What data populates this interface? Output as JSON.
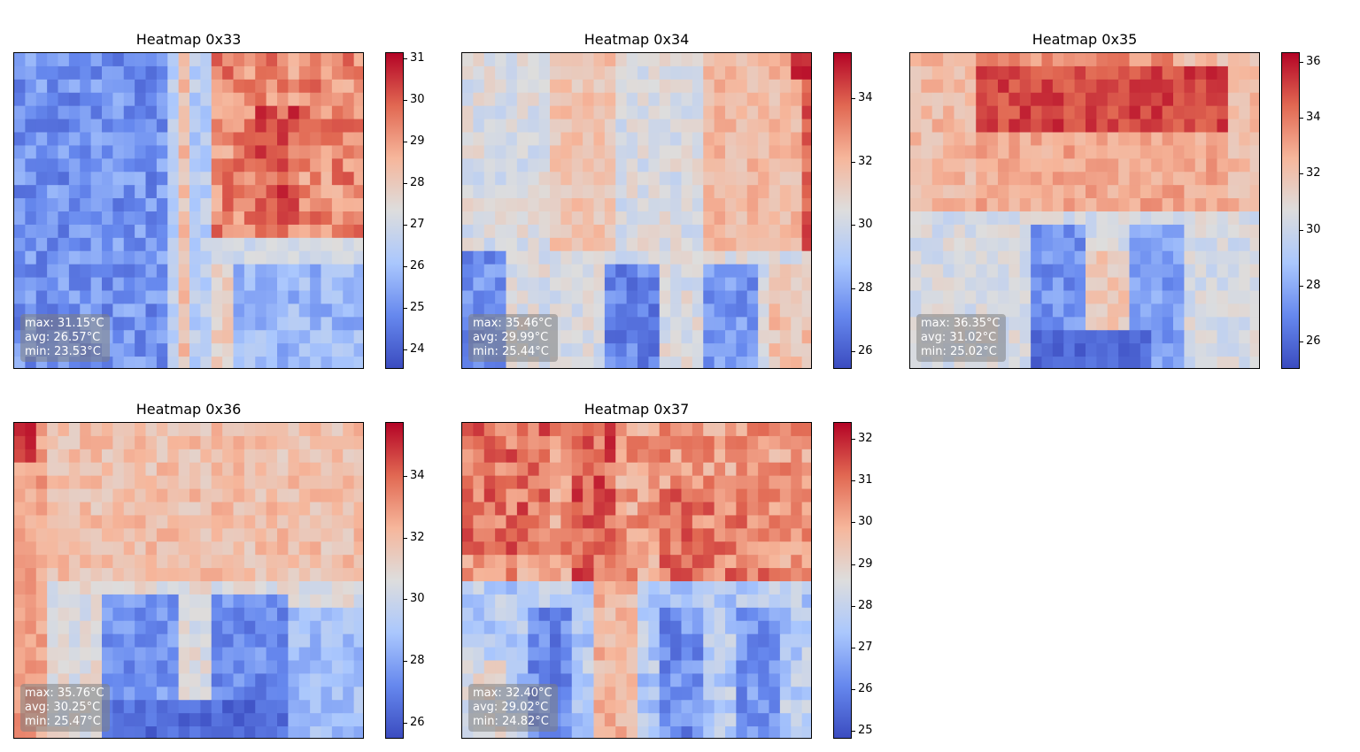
{
  "colormap": {
    "name": "coolwarm",
    "stops": [
      "#3b4cc0",
      "#6688ee",
      "#aac7fd",
      "#dddddd",
      "#f6b69b",
      "#e16852",
      "#b40426"
    ]
  },
  "chart_data": [
    {
      "type": "heatmap",
      "title": "Heatmap 0x33",
      "grid": [
        24,
        32
      ],
      "stats": {
        "max": "max: 31.15°C",
        "avg": "avg: 26.57°C",
        "min": "min: 23.53°C"
      },
      "vmin": 23.53,
      "vmax": 31.15,
      "colorbar_ticks": [
        24,
        25,
        26,
        27,
        28,
        29,
        30,
        31
      ],
      "regions": [
        {
          "rows": [
            0,
            24
          ],
          "cols": [
            0,
            14
          ],
          "value": 25.0,
          "jitter": 0.8
        },
        {
          "rows": [
            0,
            24
          ],
          "cols": [
            14,
            15
          ],
          "value": 26.5,
          "jitter": 0.5
        },
        {
          "rows": [
            0,
            24
          ],
          "cols": [
            15,
            16
          ],
          "value": 28.3,
          "jitter": 0.6
        },
        {
          "rows": [
            0,
            24
          ],
          "cols": [
            16,
            18
          ],
          "value": 26.4,
          "jitter": 0.6
        },
        {
          "rows": [
            0,
            14
          ],
          "cols": [
            18,
            32
          ],
          "value": 29.3,
          "jitter": 0.9
        },
        {
          "rows": [
            4,
            13
          ],
          "cols": [
            22,
            26
          ],
          "value": 30.0,
          "jitter": 0.9
        },
        {
          "rows": [
            14,
            16
          ],
          "cols": [
            18,
            32
          ],
          "value": 27.0,
          "jitter": 0.4
        },
        {
          "rows": [
            16,
            24
          ],
          "cols": [
            18,
            20
          ],
          "value": 27.8,
          "jitter": 0.6
        },
        {
          "rows": [
            16,
            24
          ],
          "cols": [
            20,
            32
          ],
          "value": 25.8,
          "jitter": 0.7
        }
      ]
    },
    {
      "type": "heatmap",
      "title": "Heatmap 0x34",
      "grid": [
        24,
        32
      ],
      "stats": {
        "max": "max: 35.46°C",
        "avg": "avg: 29.99°C",
        "min": "min: 25.44°C"
      },
      "vmin": 25.44,
      "vmax": 35.46,
      "colorbar_ticks": [
        26,
        28,
        30,
        32,
        34
      ],
      "regions": [
        {
          "rows": [
            0,
            24
          ],
          "cols": [
            0,
            32
          ],
          "value": 30.3,
          "jitter": 0.8
        },
        {
          "rows": [
            0,
            15
          ],
          "cols": [
            8,
            14
          ],
          "value": 31.6,
          "jitter": 0.7
        },
        {
          "rows": [
            0,
            15
          ],
          "cols": [
            22,
            31
          ],
          "value": 31.9,
          "jitter": 0.7
        },
        {
          "rows": [
            0,
            15
          ],
          "cols": [
            31,
            32
          ],
          "value": 33.8,
          "jitter": 0.9
        },
        {
          "rows": [
            0,
            2
          ],
          "cols": [
            30,
            32
          ],
          "value": 35.0,
          "jitter": 0.4
        },
        {
          "rows": [
            15,
            24
          ],
          "cols": [
            0,
            4
          ],
          "value": 27.3,
          "jitter": 0.9
        },
        {
          "rows": [
            16,
            24
          ],
          "cols": [
            13,
            18
          ],
          "value": 27.0,
          "jitter": 0.9
        },
        {
          "rows": [
            16,
            24
          ],
          "cols": [
            22,
            27
          ],
          "value": 27.5,
          "jitter": 0.9
        },
        {
          "rows": [
            16,
            24
          ],
          "cols": [
            28,
            32
          ],
          "value": 31.6,
          "jitter": 0.8
        }
      ]
    },
    {
      "type": "heatmap",
      "title": "Heatmap 0x35",
      "grid": [
        24,
        32
      ],
      "stats": {
        "max": "max: 36.35°C",
        "avg": "avg: 31.02°C",
        "min": "min: 25.02°C"
      },
      "vmin": 25.02,
      "vmax": 36.35,
      "colorbar_ticks": [
        26,
        28,
        30,
        32,
        34,
        36
      ],
      "regions": [
        {
          "rows": [
            0,
            12
          ],
          "cols": [
            0,
            32
          ],
          "value": 32.3,
          "jitter": 0.8
        },
        {
          "rows": [
            1,
            6
          ],
          "cols": [
            6,
            29
          ],
          "value": 35.1,
          "jitter": 0.8
        },
        {
          "rows": [
            0,
            1
          ],
          "cols": [
            6,
            24
          ],
          "value": 33.5,
          "jitter": 0.8
        },
        {
          "rows": [
            6,
            12
          ],
          "cols": [
            6,
            29
          ],
          "value": 32.9,
          "jitter": 0.8
        },
        {
          "rows": [
            12,
            24
          ],
          "cols": [
            0,
            32
          ],
          "value": 30.4,
          "jitter": 0.8
        },
        {
          "rows": [
            13,
            24
          ],
          "cols": [
            11,
            16
          ],
          "value": 27.2,
          "jitter": 0.9
        },
        {
          "rows": [
            13,
            24
          ],
          "cols": [
            20,
            25
          ],
          "value": 27.6,
          "jitter": 0.9
        },
        {
          "rows": [
            15,
            22
          ],
          "cols": [
            16,
            20
          ],
          "value": 31.8,
          "jitter": 0.7
        },
        {
          "rows": [
            21,
            24
          ],
          "cols": [
            11,
            22
          ],
          "value": 25.9,
          "jitter": 0.6
        }
      ]
    },
    {
      "type": "heatmap",
      "title": "Heatmap 0x36",
      "grid": [
        24,
        32
      ],
      "stats": {
        "max": "max: 35.76°C",
        "avg": "avg: 30.25°C",
        "min": "min: 25.47°C"
      },
      "vmin": 25.47,
      "vmax": 35.76,
      "colorbar_ticks": [
        26,
        28,
        30,
        32,
        34
      ],
      "regions": [
        {
          "rows": [
            0,
            24
          ],
          "cols": [
            0,
            32
          ],
          "value": 30.6,
          "jitter": 0.8
        },
        {
          "rows": [
            0,
            12
          ],
          "cols": [
            0,
            32
          ],
          "value": 31.9,
          "jitter": 0.8
        },
        {
          "rows": [
            0,
            24
          ],
          "cols": [
            0,
            3
          ],
          "value": 32.8,
          "jitter": 0.8
        },
        {
          "rows": [
            0,
            3
          ],
          "cols": [
            0,
            2
          ],
          "value": 35.0,
          "jitter": 0.5
        },
        {
          "rows": [
            13,
            24
          ],
          "cols": [
            8,
            15
          ],
          "value": 27.5,
          "jitter": 0.9
        },
        {
          "rows": [
            13,
            24
          ],
          "cols": [
            18,
            25
          ],
          "value": 27.3,
          "jitter": 0.9
        },
        {
          "rows": [
            21,
            24
          ],
          "cols": [
            8,
            25
          ],
          "value": 26.4,
          "jitter": 0.7
        },
        {
          "rows": [
            14,
            24
          ],
          "cols": [
            25,
            32
          ],
          "value": 28.7,
          "jitter": 0.8
        }
      ]
    },
    {
      "type": "heatmap",
      "title": "Heatmap 0x37",
      "grid": [
        24,
        32
      ],
      "stats": {
        "max": "max: 32.40°C",
        "avg": "avg: 29.02°C",
        "min": "min: 24.82°C"
      },
      "vmin": 24.82,
      "vmax": 32.4,
      "colorbar_ticks": [
        25,
        26,
        27,
        28,
        29,
        30,
        31,
        32
      ],
      "regions": [
        {
          "rows": [
            0,
            12
          ],
          "cols": [
            0,
            32
          ],
          "value": 30.3,
          "jitter": 0.9
        },
        {
          "rows": [
            0,
            10
          ],
          "cols": [
            0,
            8
          ],
          "value": 31.0,
          "jitter": 0.9
        },
        {
          "rows": [
            0,
            12
          ],
          "cols": [
            10,
            14
          ],
          "value": 31.2,
          "jitter": 0.9
        },
        {
          "rows": [
            5,
            12
          ],
          "cols": [
            18,
            28
          ],
          "value": 30.8,
          "jitter": 0.9
        },
        {
          "rows": [
            12,
            24
          ],
          "cols": [
            0,
            32
          ],
          "value": 27.6,
          "jitter": 0.8
        },
        {
          "rows": [
            12,
            24
          ],
          "cols": [
            12,
            16
          ],
          "value": 29.8,
          "jitter": 0.6
        },
        {
          "rows": [
            14,
            24
          ],
          "cols": [
            6,
            10
          ],
          "value": 26.1,
          "jitter": 0.8
        },
        {
          "rows": [
            14,
            24
          ],
          "cols": [
            18,
            22
          ],
          "value": 26.2,
          "jitter": 0.8
        },
        {
          "rows": [
            14,
            24
          ],
          "cols": [
            25,
            29
          ],
          "value": 26.4,
          "jitter": 0.8
        },
        {
          "rows": [
            18,
            24
          ],
          "cols": [
            0,
            4
          ],
          "value": 28.6,
          "jitter": 0.7
        }
      ]
    }
  ]
}
